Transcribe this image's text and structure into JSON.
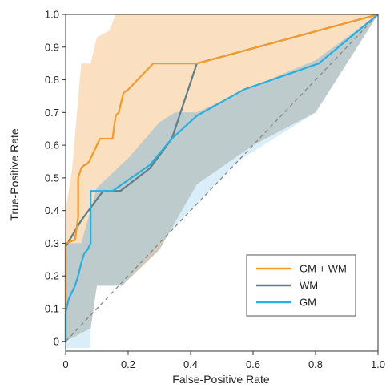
{
  "chart_data": {
    "type": "line",
    "xlabel": "False-Positive Rate",
    "ylabel": "True-Positive Rate",
    "xlim": [
      0,
      1.0
    ],
    "ylim": [
      -0.03,
      1.0
    ],
    "x_ticks": [
      "0",
      "0.2",
      "0.4",
      "0.6",
      "0.8",
      "1.0"
    ],
    "x_tick_values": [
      0,
      0.2,
      0.4,
      0.6,
      0.8,
      1.0
    ],
    "y_ticks": [
      "0",
      "0.1",
      "0.2",
      "0.3",
      "0.4",
      "0.5",
      "0.6",
      "0.7",
      "0.8",
      "0.9",
      "1.0"
    ],
    "y_tick_values": [
      0,
      0.1,
      0.2,
      0.3,
      0.4,
      0.5,
      0.6,
      0.7,
      0.8,
      0.9,
      1.0
    ],
    "grid": false,
    "legend_position": "lower-right",
    "reference_line": {
      "x": [
        0,
        1
      ],
      "y": [
        0,
        1
      ],
      "style": "dashed",
      "color": "#888888"
    },
    "series": [
      {
        "name": "GM + WM",
        "color": "#f39a2a",
        "band_color": "#f6c48c",
        "x": [
          0,
          0,
          0.03,
          0.04,
          0.04,
          0.05,
          0.06,
          0.065,
          0.075,
          0.09,
          0.1,
          0.11,
          0.15,
          0.16,
          0.17,
          0.18,
          0.185,
          0.2,
          0.28,
          0.42,
          1.0
        ],
        "y": [
          0,
          0.3,
          0.31,
          0.38,
          0.5,
          0.53,
          0.54,
          0.54,
          0.55,
          0.58,
          0.6,
          0.62,
          0.62,
          0.69,
          0.7,
          0.74,
          0.76,
          0.77,
          0.85,
          0.85,
          1.0
        ],
        "band_upper": {
          "x": [
            0,
            0.02,
            0.05,
            0.08,
            0.1,
            0.14,
            0.16,
            0.22,
            0.32,
            0.42,
            0.6,
            1.0
          ],
          "y": [
            0.4,
            0.52,
            0.85,
            0.85,
            0.93,
            0.95,
            1.0,
            1.0,
            1.0,
            1.0,
            1.0,
            1.0
          ]
        },
        "band_lower": {
          "x": [
            0,
            0.08,
            0.1,
            0.18,
            0.3,
            0.42,
            0.6,
            0.8,
            1.0
          ],
          "y": [
            0,
            0.04,
            0.17,
            0.17,
            0.28,
            0.48,
            0.6,
            0.7,
            1.0
          ]
        }
      },
      {
        "name": "WM",
        "color": "#5f7f87",
        "band_color": "#9fb1b4",
        "x": [
          0,
          0,
          0.05,
          0.12,
          0.175,
          0.27,
          0.34,
          0.42,
          1.0
        ],
        "y": [
          0,
          0.29,
          0.37,
          0.46,
          0.46,
          0.53,
          0.62,
          0.85,
          1.0
        ]
      },
      {
        "name": "GM",
        "color": "#2aaee0",
        "band_color": "#bfe3f5",
        "x": [
          0,
          0,
          0.005,
          0.01,
          0.02,
          0.03,
          0.04,
          0.05,
          0.06,
          0.07,
          0.08,
          0.08,
          0.09,
          0.15,
          0.27,
          0.34,
          0.42,
          0.57,
          0.81,
          1.0
        ],
        "y": [
          0,
          0.09,
          0.11,
          0.13,
          0.15,
          0.17,
          0.2,
          0.24,
          0.27,
          0.28,
          0.3,
          0.46,
          0.46,
          0.46,
          0.54,
          0.62,
          0.69,
          0.77,
          0.85,
          1.0
        ],
        "band_upper": {
          "x": [
            0,
            0.05,
            0.1,
            0.2,
            0.3,
            0.35,
            0.42,
            0.6,
            0.8,
            1.0
          ],
          "y": [
            0.3,
            0.3,
            0.47,
            0.56,
            0.67,
            0.7,
            0.7,
            0.78,
            0.86,
            1.0
          ]
        },
        "band_lower": {
          "x": [
            0,
            0.08,
            0.08,
            0.1,
            0.18,
            0.25,
            0.35,
            0.45,
            0.55,
            0.8,
            1.0
          ],
          "y": [
            -0.02,
            -0.02,
            0.04,
            0.17,
            0.17,
            0.25,
            0.35,
            0.45,
            0.55,
            0.7,
            1.0
          ]
        }
      }
    ]
  }
}
